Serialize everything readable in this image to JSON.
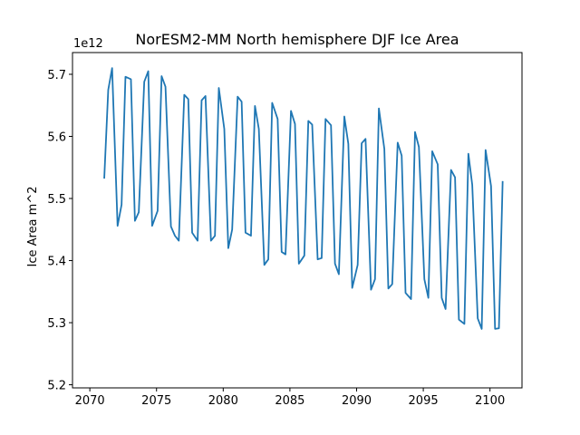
{
  "chart_data": {
    "type": "line",
    "title": "NorESM2-MM North hemisphere DJF Ice Area",
    "xlabel": "",
    "ylabel": "Ice Area m^2",
    "y_offset_label": "1e12",
    "xlim": [
      2068.7,
      2102.4
    ],
    "ylim": [
      5.195,
      5.735
    ],
    "x_ticks": [
      2070,
      2075,
      2080,
      2085,
      2090,
      2095,
      2100
    ],
    "x_tick_labels": [
      "2070",
      "2075",
      "2080",
      "2085",
      "2090",
      "2095",
      "2100"
    ],
    "y_ticks": [
      5.2,
      5.3,
      5.4,
      5.5,
      5.6,
      5.7
    ],
    "y_tick_labels": [
      "5.2",
      "5.3",
      "5.4",
      "5.5",
      "5.6",
      "5.7"
    ],
    "grid": false,
    "line_color": "#1f77b4",
    "series": [
      {
        "name": "",
        "x": [
          2071.08,
          2071.38,
          2071.67,
          2072.08,
          2072.38,
          2072.67,
          2073.08,
          2073.38,
          2073.67,
          2074.08,
          2074.38,
          2074.67,
          2075.08,
          2075.38,
          2075.67,
          2076.08,
          2076.38,
          2076.67,
          2077.08,
          2077.38,
          2077.67,
          2078.08,
          2078.38,
          2078.67,
          2079.08,
          2079.38,
          2079.67,
          2080.08,
          2080.38,
          2080.67,
          2081.08,
          2081.38,
          2081.67,
          2082.08,
          2082.38,
          2082.67,
          2083.08,
          2083.38,
          2083.67,
          2084.08,
          2084.38,
          2084.67,
          2085.08,
          2085.38,
          2085.67,
          2086.08,
          2086.38,
          2086.67,
          2087.08,
          2087.38,
          2087.67,
          2088.08,
          2088.38,
          2088.67,
          2089.08,
          2089.38,
          2089.67,
          2090.08,
          2090.38,
          2090.67,
          2091.08,
          2091.38,
          2091.67,
          2092.08,
          2092.38,
          2092.67,
          2093.08,
          2093.38,
          2093.67,
          2094.08,
          2094.38,
          2094.67,
          2095.08,
          2095.38,
          2095.67,
          2096.08,
          2096.38,
          2096.67,
          2097.08,
          2097.38,
          2097.67,
          2098.08,
          2098.38,
          2098.67,
          2099.08,
          2099.38,
          2099.67,
          2100.08,
          2100.38,
          2100.67,
          2100.95
        ],
        "y": [
          5.532,
          5.675,
          5.71,
          5.456,
          5.49,
          5.696,
          5.692,
          5.464,
          5.478,
          5.688,
          5.705,
          5.456,
          5.48,
          5.697,
          5.68,
          5.455,
          5.44,
          5.432,
          5.667,
          5.66,
          5.445,
          5.432,
          5.658,
          5.665,
          5.432,
          5.44,
          5.678,
          5.612,
          5.42,
          5.45,
          5.664,
          5.656,
          5.445,
          5.44,
          5.649,
          5.612,
          5.393,
          5.402,
          5.654,
          5.628,
          5.414,
          5.41,
          5.641,
          5.62,
          5.395,
          5.408,
          5.625,
          5.619,
          5.402,
          5.404,
          5.628,
          5.618,
          5.395,
          5.378,
          5.632,
          5.588,
          5.356,
          5.393,
          5.589,
          5.596,
          5.353,
          5.37,
          5.645,
          5.58,
          5.355,
          5.362,
          5.59,
          5.569,
          5.348,
          5.338,
          5.607,
          5.583,
          5.37,
          5.34,
          5.576,
          5.555,
          5.34,
          5.322,
          5.546,
          5.534,
          5.305,
          5.298,
          5.572,
          5.522,
          5.307,
          5.29,
          5.578,
          5.52,
          5.29,
          5.291,
          5.528
        ]
      }
    ]
  }
}
